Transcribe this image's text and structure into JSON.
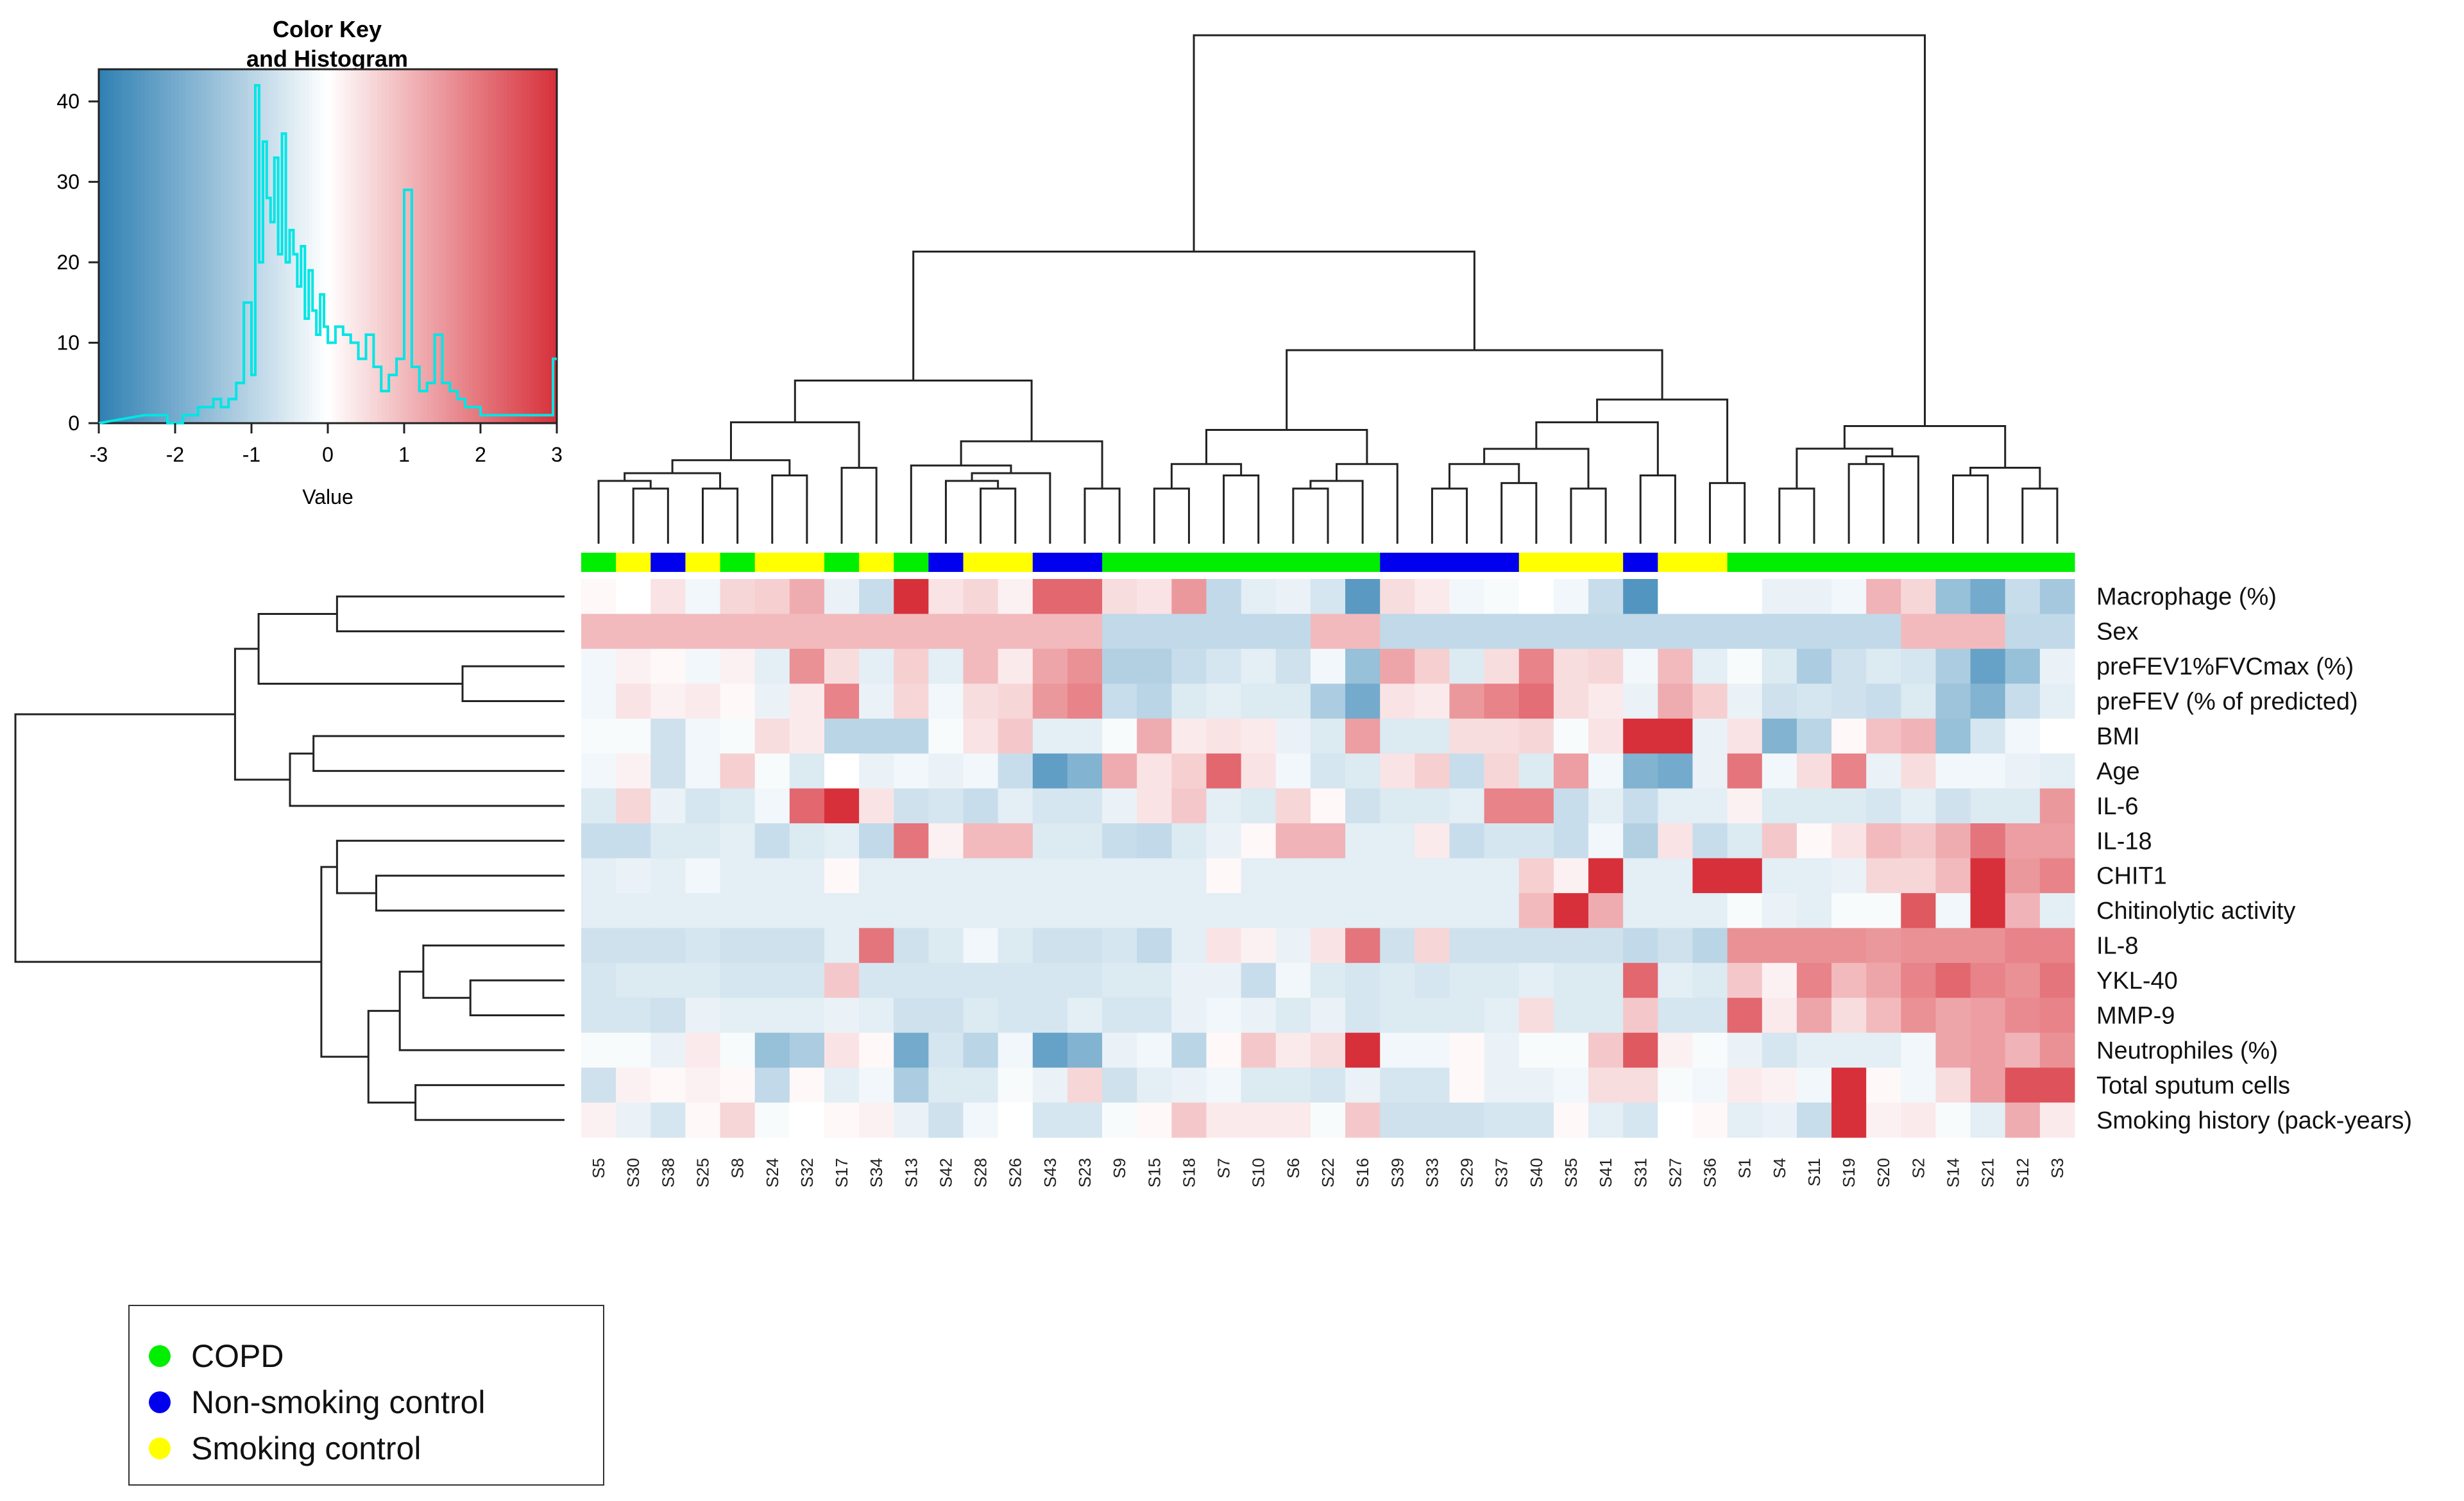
{
  "chart_data": {
    "type": "heatmap",
    "title": "",
    "color_key": {
      "title_line1": "Color Key",
      "title_line2": "and Histogram",
      "xlabel": "Value",
      "x_ticks": [
        "-3",
        "-2",
        "-1",
        "0",
        "1",
        "2",
        "3"
      ],
      "y_ticks": [
        "0",
        "10",
        "20",
        "30",
        "40"
      ],
      "range": [
        -3,
        3
      ],
      "low_color": "#2f80b3",
      "mid_color": "#ffffff",
      "high_color": "#d7303a",
      "histogram_color": "#00e5e5",
      "histogram_bins": [
        {
          "x": -2.4,
          "count": 1
        },
        {
          "x": -2.1,
          "count": 0
        },
        {
          "x": -1.9,
          "count": 1
        },
        {
          "x": -1.7,
          "count": 2
        },
        {
          "x": -1.5,
          "count": 3
        },
        {
          "x": -1.4,
          "count": 2
        },
        {
          "x": -1.3,
          "count": 3
        },
        {
          "x": -1.2,
          "count": 5
        },
        {
          "x": -1.1,
          "count": 15
        },
        {
          "x": -1.0,
          "count": 6
        },
        {
          "x": -0.95,
          "count": 42
        },
        {
          "x": -0.9,
          "count": 20
        },
        {
          "x": -0.85,
          "count": 35
        },
        {
          "x": -0.8,
          "count": 28
        },
        {
          "x": -0.75,
          "count": 25
        },
        {
          "x": -0.7,
          "count": 33
        },
        {
          "x": -0.65,
          "count": 21
        },
        {
          "x": -0.6,
          "count": 36
        },
        {
          "x": -0.55,
          "count": 20
        },
        {
          "x": -0.5,
          "count": 24
        },
        {
          "x": -0.45,
          "count": 21
        },
        {
          "x": -0.4,
          "count": 17
        },
        {
          "x": -0.35,
          "count": 22
        },
        {
          "x": -0.3,
          "count": 13
        },
        {
          "x": -0.25,
          "count": 19
        },
        {
          "x": -0.2,
          "count": 14
        },
        {
          "x": -0.15,
          "count": 11
        },
        {
          "x": -0.1,
          "count": 16
        },
        {
          "x": -0.05,
          "count": 12
        },
        {
          "x": 0.0,
          "count": 10
        },
        {
          "x": 0.1,
          "count": 12
        },
        {
          "x": 0.2,
          "count": 11
        },
        {
          "x": 0.3,
          "count": 10
        },
        {
          "x": 0.4,
          "count": 8
        },
        {
          "x": 0.5,
          "count": 11
        },
        {
          "x": 0.6,
          "count": 7
        },
        {
          "x": 0.7,
          "count": 4
        },
        {
          "x": 0.8,
          "count": 6
        },
        {
          "x": 0.9,
          "count": 8
        },
        {
          "x": 1.0,
          "count": 29
        },
        {
          "x": 1.1,
          "count": 7
        },
        {
          "x": 1.2,
          "count": 4
        },
        {
          "x": 1.3,
          "count": 5
        },
        {
          "x": 1.4,
          "count": 11
        },
        {
          "x": 1.5,
          "count": 5
        },
        {
          "x": 1.6,
          "count": 4
        },
        {
          "x": 1.7,
          "count": 3
        },
        {
          "x": 1.8,
          "count": 2
        },
        {
          "x": 2.0,
          "count": 1
        },
        {
          "x": 2.3,
          "count": 1
        },
        {
          "x": 2.6,
          "count": 1
        },
        {
          "x": 2.95,
          "count": 8
        }
      ]
    },
    "samples": [
      "S5",
      "S30",
      "S38",
      "S25",
      "S8",
      "S24",
      "S32",
      "S17",
      "S34",
      "S13",
      "S42",
      "S28",
      "S26",
      "S43",
      "S23",
      "S9",
      "S15",
      "S18",
      "S7",
      "S10",
      "S6",
      "S22",
      "S16",
      "S39",
      "S33",
      "S29",
      "S37",
      "S40",
      "S35",
      "S41",
      "S31",
      "S27",
      "S36",
      "S1",
      "S4",
      "S11",
      "S19",
      "S20",
      "S2",
      "S14",
      "S21",
      "S12",
      "S3"
    ],
    "groups": [
      "COPD",
      "Smoking control",
      "Non-smoking control",
      "Smoking control",
      "COPD",
      "Smoking control",
      "Smoking control",
      "COPD",
      "Smoking control",
      "COPD",
      "Non-smoking control",
      "Smoking control",
      "Smoking control",
      "Non-smoking control",
      "Non-smoking control",
      "COPD",
      "COPD",
      "COPD",
      "COPD",
      "COPD",
      "COPD",
      "COPD",
      "COPD",
      "Non-smoking control",
      "Non-smoking control",
      "Non-smoking control",
      "Non-smoking control",
      "Smoking control",
      "Smoking control",
      "Smoking control",
      "Non-smoking control",
      "Smoking control",
      "Smoking control",
      "COPD",
      "COPD",
      "COPD",
      "COPD",
      "COPD",
      "COPD",
      "COPD",
      "COPD",
      "COPD",
      "COPD"
    ],
    "group_colors": {
      "COPD": "#00ee00",
      "Non-smoking control": "#0000ee",
      "Smoking control": "#ffff00"
    },
    "variables": [
      "Macrophage (%)",
      "Sex",
      "preFEV1%FVCmax (%)",
      "preFEV (% of predicted)",
      "BMI",
      "Age",
      "IL-6",
      "IL-18",
      "CHIT1",
      "Chitinolytic activity",
      "IL-8",
      "YKL-40",
      "MMP-9",
      "Neutrophiles (%)",
      "Total sputum cells",
      "Smoking history (pack-years)"
    ],
    "values": [
      [
        0.1,
        0,
        0.4,
        -0.2,
        0.6,
        0.7,
        1.2,
        -0.3,
        -0.8,
        3.0,
        0.4,
        0.6,
        0.2,
        2.2,
        2.2,
        0.5,
        0.4,
        1.5,
        -0.9,
        -0.4,
        -0.3,
        -0.6,
        -2.4,
        0.5,
        0.3,
        -0.2,
        -0.1,
        0.0,
        -0.2,
        -0.8,
        -2.5,
        0.0,
        0.0,
        0.0,
        -0.3,
        -0.3,
        -0.2,
        1.1,
        0.6,
        -1.5,
        -2.0,
        -0.8,
        -1.3
      ],
      [
        1.0,
        1.0,
        1.0,
        1.0,
        1.0,
        1.0,
        1.0,
        1.0,
        1.0,
        1.0,
        1.0,
        1.0,
        1.0,
        1.0,
        1.0,
        -0.9,
        -0.9,
        -0.9,
        -0.9,
        -0.9,
        -0.9,
        1.0,
        1.0,
        -0.9,
        -0.9,
        -0.9,
        -0.9,
        -0.9,
        -0.9,
        -0.9,
        -0.9,
        -0.9,
        -0.9,
        -0.9,
        -0.9,
        -0.9,
        -0.9,
        -0.9,
        1.0,
        1.0,
        1.0,
        -0.9,
        -0.9
      ],
      [
        -0.2,
        0.2,
        0.1,
        -0.2,
        0.2,
        -0.4,
        1.6,
        0.5,
        -0.4,
        0.7,
        -0.4,
        1.0,
        0.3,
        1.3,
        1.6,
        -1.1,
        -1.1,
        -0.8,
        -0.6,
        -0.4,
        -0.7,
        -0.2,
        -1.5,
        1.3,
        0.7,
        -0.5,
        0.5,
        1.8,
        0.5,
        0.6,
        -0.2,
        1.0,
        -0.4,
        -0.1,
        -0.5,
        -1.2,
        -0.7,
        -0.5,
        -0.6,
        -1.2,
        -2.2,
        -1.5,
        -0.3
      ],
      [
        -0.2,
        0.4,
        0.2,
        0.3,
        0.1,
        -0.3,
        0.3,
        1.8,
        -0.3,
        0.6,
        -0.2,
        0.5,
        0.6,
        1.5,
        1.8,
        -0.8,
        -1.0,
        -0.5,
        -0.4,
        -0.5,
        -0.5,
        -1.2,
        -2.0,
        0.4,
        0.3,
        1.5,
        1.8,
        2.1,
        0.5,
        0.3,
        -0.3,
        1.2,
        0.7,
        -0.3,
        -0.7,
        -0.6,
        -0.7,
        -0.8,
        -0.5,
        -1.4,
        -1.8,
        -0.8,
        -0.4
      ],
      [
        -0.1,
        -0.1,
        -0.7,
        -0.2,
        -0.1,
        0.5,
        0.3,
        -1.0,
        -1.0,
        -1.0,
        -0.1,
        0.4,
        0.8,
        -0.4,
        -0.4,
        -0.1,
        1.2,
        0.3,
        0.4,
        0.3,
        -0.3,
        -0.5,
        1.4,
        -0.5,
        -0.5,
        0.5,
        0.5,
        0.6,
        -0.1,
        0.4,
        3.0,
        3.0,
        -0.3,
        0.4,
        -1.8,
        -1.0,
        0.1,
        0.9,
        1.1,
        -1.5,
        -0.6,
        -0.2,
        0.0
      ],
      [
        -0.2,
        0.2,
        -0.7,
        -0.2,
        0.7,
        -0.1,
        -0.5,
        0.0,
        -0.3,
        -0.2,
        -0.3,
        -0.2,
        -0.8,
        -2.3,
        -1.8,
        1.2,
        0.4,
        0.7,
        2.2,
        0.4,
        -0.2,
        -0.6,
        -0.5,
        0.4,
        0.7,
        -0.8,
        0.6,
        -0.5,
        1.4,
        -0.2,
        -1.8,
        -2.0,
        -0.3,
        2.0,
        -0.2,
        0.5,
        1.8,
        -0.3,
        0.5,
        -0.2,
        -0.2,
        -0.3,
        -0.4
      ],
      [
        -0.5,
        0.6,
        -0.3,
        -0.6,
        -0.5,
        -0.2,
        2.2,
        3.0,
        0.4,
        -0.7,
        -0.6,
        -0.8,
        -0.4,
        -0.6,
        -0.6,
        -0.3,
        0.4,
        0.8,
        -0.4,
        -0.5,
        0.6,
        0.1,
        -0.7,
        -0.5,
        -0.5,
        -0.4,
        1.8,
        1.8,
        -0.8,
        -0.4,
        -0.8,
        -0.4,
        -0.4,
        0.2,
        -0.5,
        -0.5,
        -0.5,
        -0.6,
        -0.4,
        -0.7,
        -0.5,
        -0.5,
        1.5
      ],
      [
        -0.8,
        -0.8,
        -0.5,
        -0.5,
        -0.4,
        -0.8,
        -0.5,
        -0.4,
        -0.9,
        2.0,
        0.2,
        1.0,
        1.0,
        -0.5,
        -0.5,
        -0.8,
        -0.9,
        -0.5,
        -0.3,
        0.1,
        1.1,
        1.1,
        -0.4,
        -0.4,
        0.3,
        -0.8,
        -0.6,
        -0.6,
        -0.8,
        -0.2,
        -1.1,
        0.4,
        -0.8,
        -0.5,
        0.8,
        0.1,
        0.4,
        1.0,
        0.8,
        1.2,
        2.0,
        1.4,
        1.4
      ],
      [
        -0.4,
        -0.3,
        -0.4,
        -0.2,
        -0.4,
        -0.4,
        -0.4,
        0.1,
        -0.4,
        -0.4,
        -0.4,
        -0.4,
        -0.4,
        -0.4,
        -0.4,
        -0.4,
        -0.4,
        -0.4,
        0.1,
        -0.4,
        -0.4,
        -0.4,
        -0.4,
        -0.4,
        -0.4,
        -0.4,
        -0.4,
        0.7,
        0.2,
        3.0,
        -0.4,
        -0.4,
        3.0,
        3.0,
        -0.4,
        -0.4,
        -0.3,
        0.6,
        0.6,
        1.0,
        3.0,
        1.5,
        1.8
      ],
      [
        -0.4,
        -0.4,
        -0.4,
        -0.4,
        -0.4,
        -0.4,
        -0.4,
        -0.4,
        -0.4,
        -0.4,
        -0.4,
        -0.4,
        -0.4,
        -0.4,
        -0.4,
        -0.4,
        -0.4,
        -0.4,
        -0.4,
        -0.4,
        -0.4,
        -0.4,
        -0.4,
        -0.4,
        -0.4,
        -0.4,
        -0.4,
        1.0,
        3.0,
        1.2,
        -0.4,
        -0.4,
        -0.4,
        -0.1,
        -0.3,
        -0.4,
        -0.1,
        -0.1,
        2.4,
        -0.2,
        3.0,
        1.1,
        -0.4
      ],
      [
        -0.7,
        -0.7,
        -0.7,
        -0.6,
        -0.7,
        -0.7,
        -0.7,
        -0.4,
        2.0,
        -0.7,
        -0.5,
        -0.2,
        -0.5,
        -0.7,
        -0.7,
        -0.6,
        -0.9,
        -0.4,
        0.4,
        0.2,
        -0.3,
        0.4,
        2.0,
        -0.7,
        0.6,
        -0.7,
        -0.7,
        -0.7,
        -0.7,
        -0.7,
        -0.9,
        -0.7,
        -1.0,
        1.6,
        1.6,
        1.6,
        1.6,
        1.5,
        1.6,
        1.6,
        1.6,
        1.8,
        1.8
      ],
      [
        -0.6,
        -0.5,
        -0.5,
        -0.5,
        -0.6,
        -0.6,
        -0.6,
        0.8,
        -0.6,
        -0.6,
        -0.6,
        -0.6,
        -0.6,
        -0.6,
        -0.6,
        -0.5,
        -0.5,
        -0.3,
        -0.3,
        -0.8,
        -0.2,
        -0.5,
        -0.6,
        -0.5,
        -0.6,
        -0.5,
        -0.5,
        -0.4,
        -0.5,
        -0.5,
        2.2,
        -0.4,
        -0.5,
        0.8,
        0.2,
        1.8,
        1.0,
        1.3,
        1.8,
        2.2,
        1.8,
        1.6,
        2.0
      ],
      [
        -0.6,
        -0.6,
        -0.7,
        -0.3,
        -0.4,
        -0.4,
        -0.4,
        -0.3,
        -0.4,
        -0.7,
        -0.7,
        -0.5,
        -0.6,
        -0.6,
        -0.4,
        -0.6,
        -0.6,
        -0.3,
        -0.2,
        -0.3,
        -0.5,
        -0.3,
        -0.6,
        -0.5,
        -0.5,
        -0.5,
        -0.4,
        0.5,
        -0.5,
        -0.5,
        0.8,
        -0.6,
        -0.6,
        2.2,
        0.3,
        1.3,
        0.5,
        1.0,
        1.6,
        1.3,
        1.4,
        1.7,
        1.8
      ],
      [
        -0.1,
        -0.1,
        -0.3,
        0.3,
        -0.1,
        -1.5,
        -1.2,
        0.4,
        0.1,
        -2.0,
        -0.6,
        -1.0,
        -0.2,
        -2.2,
        -1.8,
        -0.3,
        -0.2,
        -1.0,
        0.1,
        0.8,
        0.3,
        0.5,
        3.0,
        -0.2,
        -0.2,
        0.1,
        -0.3,
        -0.1,
        -0.1,
        0.8,
        2.4,
        0.2,
        -0.1,
        -0.3,
        -0.6,
        -0.4,
        -0.4,
        -0.4,
        -0.2,
        1.3,
        1.4,
        1.1,
        1.6
      ],
      [
        -0.7,
        0.2,
        0.1,
        0.2,
        0.1,
        -0.9,
        0.1,
        -0.4,
        -0.2,
        -1.2,
        -0.5,
        -0.5,
        -0.1,
        -0.3,
        0.6,
        -0.7,
        -0.4,
        -0.3,
        -0.2,
        -0.5,
        -0.5,
        -0.6,
        -0.3,
        -0.6,
        -0.6,
        0.1,
        -0.3,
        -0.3,
        -0.2,
        0.5,
        0.5,
        -0.1,
        -0.2,
        0.3,
        0.2,
        -0.2,
        3.0,
        0.1,
        -0.2,
        0.5,
        1.4,
        2.5,
        2.5
      ],
      [
        0.2,
        -0.3,
        -0.6,
        0.1,
        0.6,
        -0.1,
        0.0,
        0.1,
        0.2,
        -0.3,
        -0.7,
        -0.2,
        0.0,
        -0.6,
        -0.6,
        -0.1,
        0.1,
        0.8,
        0.3,
        0.3,
        0.3,
        -0.1,
        0.8,
        -0.7,
        -0.7,
        -0.7,
        -0.6,
        -0.6,
        0.1,
        -0.4,
        -0.6,
        0.0,
        0.1,
        -0.4,
        -0.3,
        -0.8,
        3.0,
        0.2,
        0.3,
        -0.1,
        -0.4,
        1.2,
        0.3
      ]
    ]
  },
  "legend": {
    "items": [
      {
        "label": "COPD",
        "color": "#00ee00"
      },
      {
        "label": "Non-smoking control",
        "color": "#0000ee"
      },
      {
        "label": "Smoking control",
        "color": "#ffff00"
      }
    ]
  }
}
